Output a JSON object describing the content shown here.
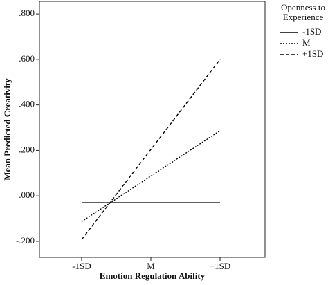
{
  "chart_data": {
    "type": "line",
    "categories": [
      "-1SD",
      "M",
      "+1SD"
    ],
    "xlabel": "Emotion Regulation Ability",
    "ylabel": "Mean Predicted Creativity",
    "legend_title": "Openness to Experience",
    "series": [
      {
        "name": "-1SD",
        "color": "#000000",
        "style": "solid",
        "values": [
          -0.03,
          -0.03,
          -0.03
        ]
      },
      {
        "name": "M",
        "color": "#000000",
        "style": "dotted",
        "values": [
          -0.113,
          0.087,
          0.287
        ]
      },
      {
        "name": "+1SD",
        "color": "#000000",
        "style": "dashed",
        "values": [
          -0.192,
          0.204,
          0.6
        ]
      }
    ],
    "ylim": [
      -0.27,
      0.855
    ],
    "yticks": [
      {
        "value": -0.2,
        "label": "-.200"
      },
      {
        "value": 0,
        "label": ".000"
      },
      {
        "value": 0.2,
        "label": ".200"
      },
      {
        "value": 0.4,
        "label": ".400"
      },
      {
        "value": 0.6,
        "label": ".600"
      },
      {
        "value": 0.8,
        "label": ".800"
      }
    ],
    "legend": "right"
  }
}
